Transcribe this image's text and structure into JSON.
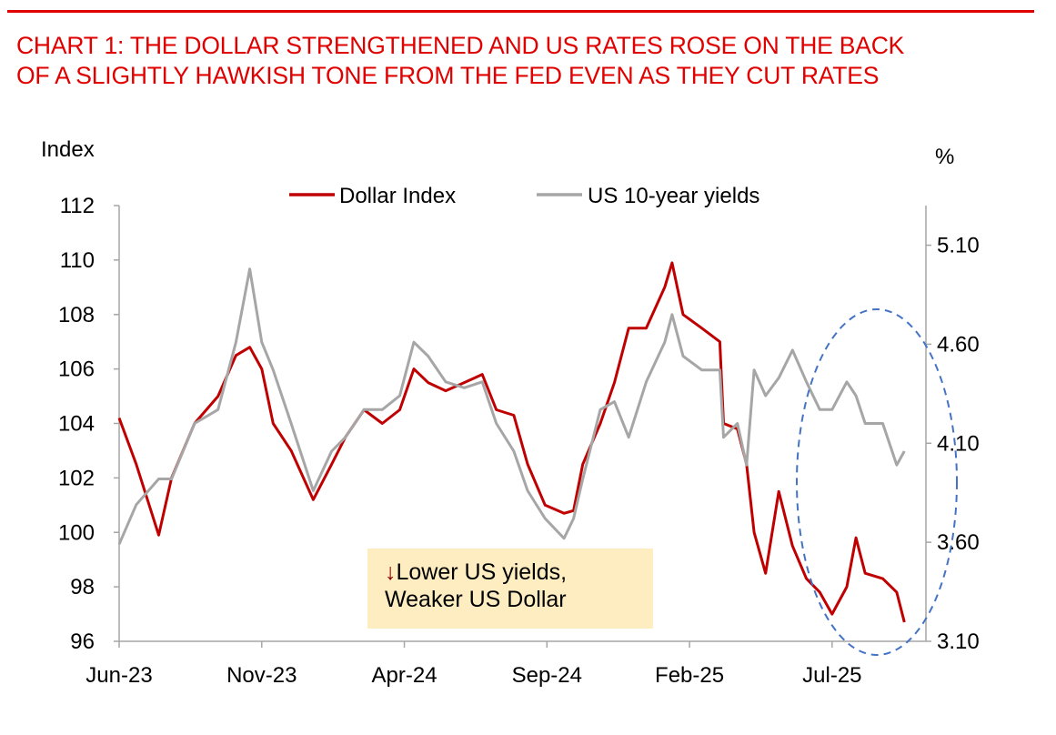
{
  "title": {
    "line1": "CHART 1: THE DOLLAR STRENGTHENED AND US RATES ROSE ON THE BACK",
    "line2": "OF A SLIGHTLY HAWKISH TONE FROM THE FED EVEN AS THEY CUT RATES"
  },
  "annotation": {
    "arrow": "↓",
    "line1": "Lower US yields,",
    "line2": "Weaker US Dollar"
  },
  "colors": {
    "title": "#e00000",
    "dollar": "#c00000",
    "yields": "#a6a6a6",
    "ellipse": "#4472c4",
    "note_bg": "#fdedc0"
  },
  "chart_data": {
    "type": "line",
    "title": "CHART 1: THE DOLLAR STRENGTHENED AND US RATES ROSE ON THE BACK OF A SLIGHTLY HAWKISH TONE FROM THE FED EVEN AS THEY CUT RATES",
    "ylabel": "Index",
    "y2label": "%",
    "ylim": [
      96,
      112
    ],
    "y2lim": [
      3.1,
      5.3
    ],
    "xlim": [
      "2023-06-01",
      "2025-10-10"
    ],
    "yticks": [
      "96",
      "98",
      "100",
      "102",
      "104",
      "106",
      "108",
      "110",
      "112"
    ],
    "y2ticks": [
      "3.10",
      "3.60",
      "4.10",
      "4.60",
      "5.10"
    ],
    "xticks": [
      {
        "label": "Jun-23",
        "date": "2023-06-01"
      },
      {
        "label": "Nov-23",
        "date": "2023-11-01"
      },
      {
        "label": "Apr-24",
        "date": "2024-04-01"
      },
      {
        "label": "Sep-24",
        "date": "2024-09-01"
      },
      {
        "label": "Feb-25",
        "date": "2025-02-01"
      },
      {
        "label": "Jul-25",
        "date": "2025-07-01"
      }
    ],
    "legend": {
      "position": "top-center",
      "entries": [
        "Dollar Index",
        "US 10-year yields"
      ]
    },
    "x": [
      "2023-06-01",
      "2023-06-19",
      "2023-07-13",
      "2023-07-27",
      "2023-08-21",
      "2023-09-15",
      "2023-10-04",
      "2023-10-19",
      "2023-11-01",
      "2023-11-13",
      "2023-12-02",
      "2023-12-26",
      "2024-01-15",
      "2024-01-30",
      "2024-02-18",
      "2024-03-08",
      "2024-03-27",
      "2024-04-11",
      "2024-04-26",
      "2024-05-15",
      "2024-06-04",
      "2024-06-23",
      "2024-07-08",
      "2024-07-27",
      "2024-08-11",
      "2024-08-30",
      "2024-09-19",
      "2024-09-29",
      "2024-10-09",
      "2024-10-28",
      "2024-11-12",
      "2024-11-27",
      "2024-12-16",
      "2025-01-05",
      "2025-01-13",
      "2025-01-25",
      "2025-02-13",
      "2025-03-03",
      "2025-03-07",
      "2025-03-22",
      "2025-04-01",
      "2025-04-09",
      "2025-04-21",
      "2025-05-05",
      "2025-05-20",
      "2025-06-04",
      "2025-06-18",
      "2025-07-01",
      "2025-07-17",
      "2025-07-27",
      "2025-08-06",
      "2025-08-25",
      "2025-09-09",
      "2025-09-17"
    ],
    "series": [
      {
        "name": "Dollar Index",
        "axis": "left",
        "values": [
          104.2,
          102.5,
          99.9,
          102.0,
          104.0,
          105.0,
          106.5,
          106.8,
          106.0,
          104.0,
          103.0,
          101.2,
          102.5,
          103.5,
          104.5,
          104.0,
          104.5,
          106.0,
          105.5,
          105.2,
          105.5,
          105.8,
          104.5,
          104.3,
          102.5,
          101.0,
          100.7,
          100.8,
          102.5,
          104.0,
          105.5,
          107.5,
          107.5,
          109.0,
          109.9,
          108.0,
          107.5,
          107.0,
          104.0,
          103.8,
          102.5,
          100.0,
          98.5,
          101.5,
          99.5,
          98.3,
          97.8,
          97.0,
          98.0,
          99.8,
          98.5,
          98.3,
          97.8,
          96.7
        ]
      },
      {
        "name": "US 10-year yields",
        "axis": "right",
        "values": [
          3.59,
          3.79,
          3.92,
          3.92,
          4.2,
          4.27,
          4.61,
          4.98,
          4.61,
          4.47,
          4.2,
          3.86,
          4.06,
          4.13,
          4.27,
          4.27,
          4.34,
          4.61,
          4.54,
          4.41,
          4.38,
          4.41,
          4.2,
          4.06,
          3.86,
          3.72,
          3.62,
          3.72,
          3.92,
          4.27,
          4.31,
          4.13,
          4.41,
          4.61,
          4.75,
          4.54,
          4.47,
          4.47,
          4.13,
          4.2,
          3.99,
          4.47,
          4.34,
          4.43,
          4.57,
          4.41,
          4.27,
          4.27,
          4.41,
          4.34,
          4.2,
          4.2,
          3.99,
          4.06
        ]
      }
    ]
  }
}
